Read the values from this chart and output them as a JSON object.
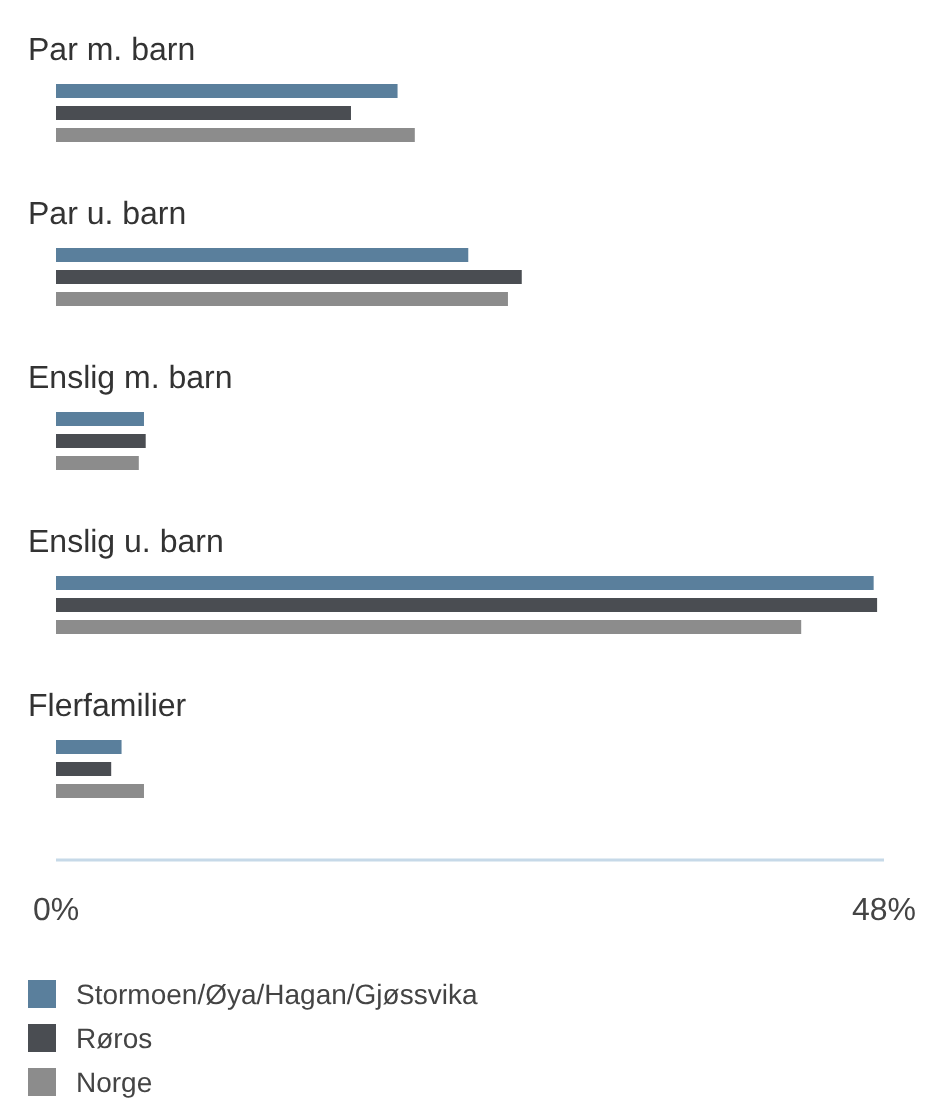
{
  "chart_data": {
    "type": "bar",
    "orientation": "horizontal",
    "categories": [
      "Par m. barn",
      "Par u. barn",
      "Enslig m. barn",
      "Enslig u. barn",
      "Flerfamilier"
    ],
    "series": [
      {
        "name": "Stormoen/Øya/Hagan/Gjøssvika",
        "color": "#5a7f9c",
        "values": [
          19.8,
          23.9,
          5.1,
          47.4,
          3.8
        ]
      },
      {
        "name": "Røros",
        "color": "#4a4d52",
        "values": [
          17.1,
          27.0,
          5.2,
          47.6,
          3.2
        ]
      },
      {
        "name": "Norge",
        "color": "#8c8c8c",
        "values": [
          20.8,
          26.2,
          4.8,
          43.2,
          5.1
        ]
      }
    ],
    "xlim": [
      0,
      48
    ],
    "xticks": [
      {
        "value": 0,
        "label": "0%"
      },
      {
        "value": 48,
        "label": "48%"
      }
    ],
    "grid": false,
    "legend": "bottom"
  }
}
